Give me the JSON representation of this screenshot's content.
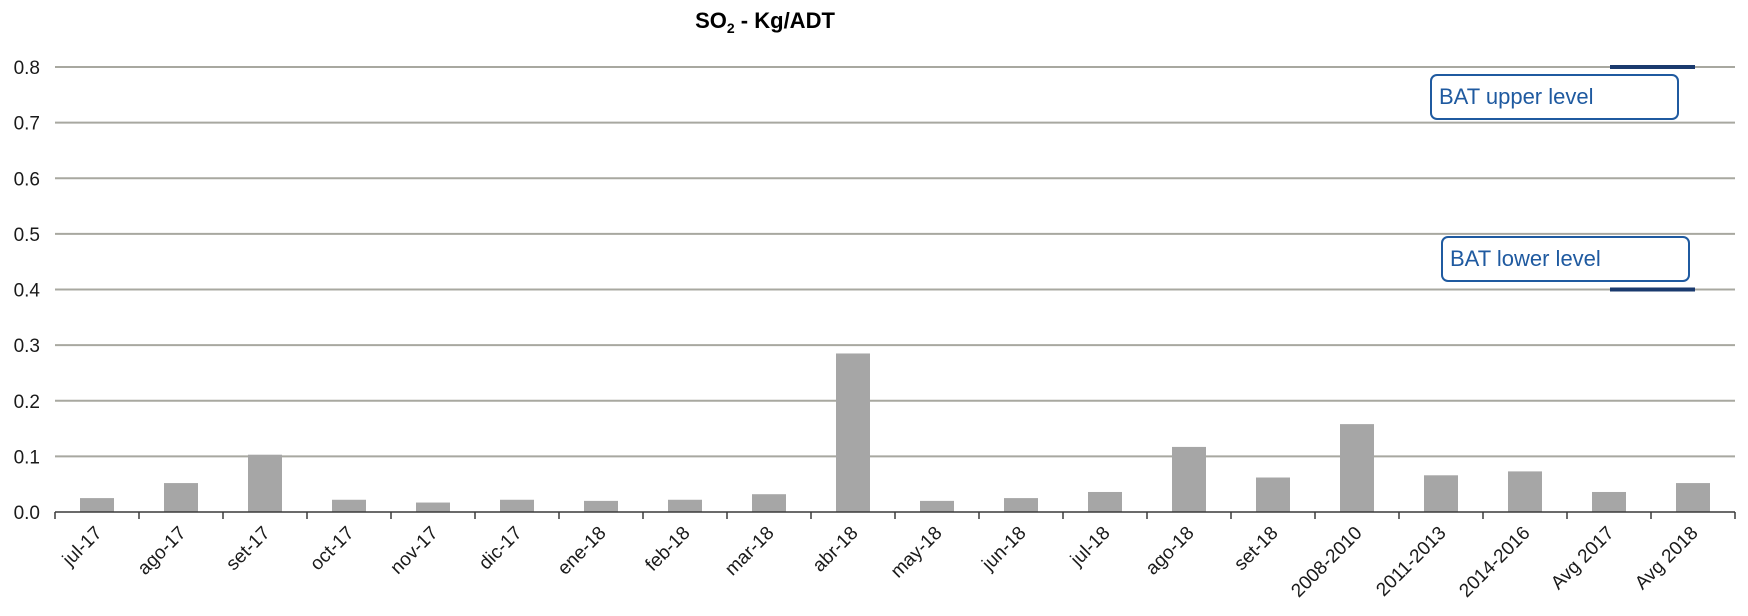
{
  "chart_data": {
    "type": "bar",
    "title_main": "SO",
    "title_sub": "2",
    "title_rest": " - Kg/ADT",
    "categories": [
      "jul-17",
      "ago-17",
      "set-17",
      "oct-17",
      "nov-17",
      "dic-17",
      "ene-18",
      "feb-18",
      "mar-18",
      "abr-18",
      "may-18",
      "jun-18",
      "jul-18",
      "ago-18",
      "set-18",
      "2008-2010",
      "2011-2013",
      "2014-2016",
      "Avg 2017",
      "Avg 2018"
    ],
    "values": [
      0.025,
      0.052,
      0.103,
      0.022,
      0.017,
      0.022,
      0.02,
      0.022,
      0.032,
      0.285,
      0.02,
      0.025,
      0.036,
      0.117,
      0.062,
      0.158,
      0.066,
      0.073,
      0.036,
      0.052
    ],
    "ylim": [
      0,
      0.8
    ],
    "yticks": [
      "0.0",
      "0.1",
      "0.2",
      "0.3",
      "0.4",
      "0.5",
      "0.6",
      "0.7",
      "0.8"
    ],
    "grid": true,
    "bar_color": "#a6a6a6",
    "grid_color": "#a8a8a0",
    "annotations": [
      {
        "label": "BAT upper level",
        "value": 0.8
      },
      {
        "label": "BAT lower level",
        "value": 0.4
      }
    ],
    "annotation_color": "#1f5aa0",
    "annotation_line_color": "#1a3a6e"
  }
}
